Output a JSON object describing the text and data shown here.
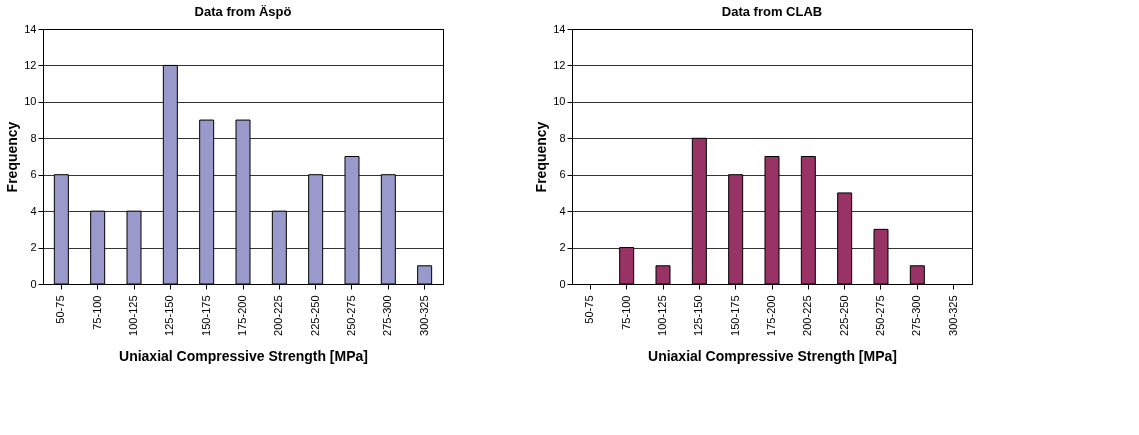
{
  "chart_data": [
    {
      "type": "bar",
      "title": "Data from Äspö",
      "xlabel": "Uniaxial Compressive Strength  [MPa]",
      "ylabel": "Frequency",
      "categories": [
        "50-75",
        "75-100",
        "100-125",
        "125-150",
        "150-175",
        "175-200",
        "200-225",
        "225-250",
        "250-275",
        "275-300",
        "300-325"
      ],
      "series": [
        {
          "color": "#9999cc",
          "values": [
            6,
            4,
            4,
            12,
            9,
            9,
            4,
            6,
            7,
            6,
            1
          ]
        }
      ],
      "ylim": [
        0,
        14
      ],
      "yticks": [
        0,
        2,
        4,
        6,
        8,
        10,
        12,
        14
      ],
      "grid": "y"
    },
    {
      "type": "bar",
      "title": "Data from CLAB",
      "xlabel": "Uniaxial Compressive Strength  [MPa]",
      "ylabel": "Frequency",
      "categories": [
        "50-75",
        "75-100",
        "100-125",
        "125-150",
        "150-175",
        "175-200",
        "200-225",
        "225-250",
        "250-275",
        "275-300",
        "300-325"
      ],
      "series": [
        {
          "color": "#993366",
          "values": [
            null,
            2,
            1,
            8,
            6,
            7,
            7,
            5,
            3,
            1,
            null
          ]
        }
      ],
      "ylim": [
        0,
        14
      ],
      "yticks": [
        0,
        2,
        4,
        6,
        8,
        10,
        12,
        14
      ],
      "grid": "y"
    }
  ]
}
